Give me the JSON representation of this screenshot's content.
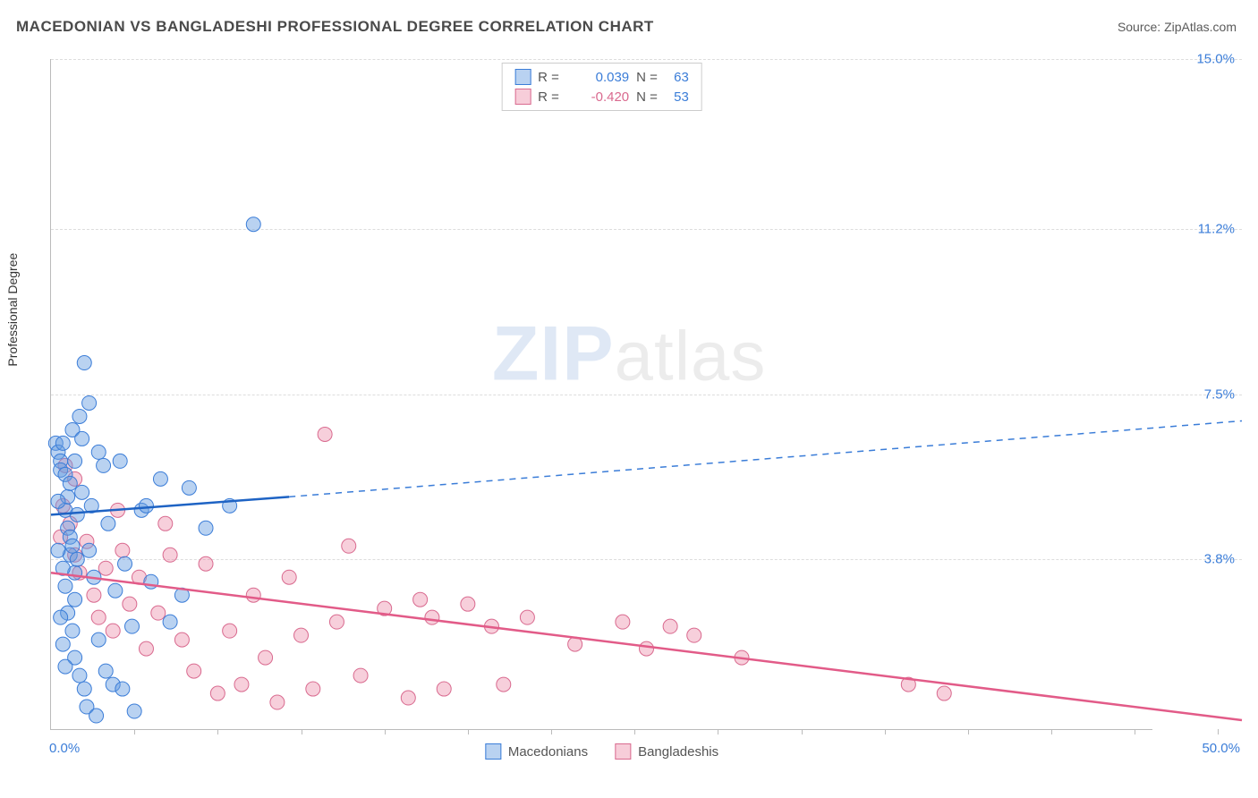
{
  "header": {
    "title": "MACEDONIAN VS BANGLADESHI PROFESSIONAL DEGREE CORRELATION CHART",
    "source": "Source: ZipAtlas.com"
  },
  "chart": {
    "type": "scatter",
    "ylabel": "Professional Degree",
    "watermark": {
      "bold": "ZIP",
      "rest": "atlas"
    },
    "xlim": [
      0,
      50
    ],
    "ylim": [
      0,
      15
    ],
    "x_axis_label_min": "0.0%",
    "x_axis_label_max": "50.0%",
    "y_ticks": [
      {
        "v": 3.8,
        "label": "3.8%"
      },
      {
        "v": 7.5,
        "label": "7.5%"
      },
      {
        "v": 11.2,
        "label": "11.2%"
      },
      {
        "v": 15.0,
        "label": "15.0%"
      }
    ],
    "x_ticks_minor": [
      3.5,
      7,
      10.5,
      14,
      17.5,
      21,
      24.5,
      28,
      31.5,
      35,
      38.5,
      42,
      45.5,
      49
    ],
    "point_radius": 8,
    "background_color": "#ffffff",
    "grid_color": "#dddddd",
    "axis_color": "#bbbbbb",
    "series": {
      "blue": {
        "name": "Macedonians",
        "color_fill": "rgba(99,155,224,0.45)",
        "color_stroke": "#3b7dd8",
        "R": "0.039",
        "N": "63",
        "trend": {
          "y0": 4.8,
          "x_solid_end": 10,
          "y_solid_end": 5.2,
          "x_end": 50,
          "y_end": 6.9
        },
        "points": [
          [
            0.2,
            6.4
          ],
          [
            0.3,
            6.2
          ],
          [
            0.4,
            6.0
          ],
          [
            0.4,
            5.8
          ],
          [
            0.5,
            6.4
          ],
          [
            0.6,
            5.7
          ],
          [
            0.6,
            4.9
          ],
          [
            0.7,
            5.2
          ],
          [
            0.7,
            4.5
          ],
          [
            0.8,
            4.3
          ],
          [
            0.8,
            3.9
          ],
          [
            0.9,
            6.7
          ],
          [
            0.9,
            4.1
          ],
          [
            1.0,
            3.5
          ],
          [
            1.0,
            2.9
          ],
          [
            1.1,
            4.8
          ],
          [
            1.2,
            7.0
          ],
          [
            1.3,
            6.5
          ],
          [
            1.4,
            8.2
          ],
          [
            1.6,
            7.3
          ],
          [
            0.3,
            4.0
          ],
          [
            0.5,
            3.6
          ],
          [
            0.6,
            3.2
          ],
          [
            0.7,
            2.6
          ],
          [
            0.9,
            2.2
          ],
          [
            1.0,
            1.6
          ],
          [
            1.2,
            1.2
          ],
          [
            1.4,
            0.9
          ],
          [
            1.6,
            4.0
          ],
          [
            1.8,
            3.4
          ],
          [
            2.0,
            6.2
          ],
          [
            2.2,
            5.9
          ],
          [
            2.4,
            4.6
          ],
          [
            2.7,
            3.1
          ],
          [
            2.9,
            6.0
          ],
          [
            3.1,
            3.7
          ],
          [
            3.4,
            2.3
          ],
          [
            3.8,
            4.9
          ],
          [
            4.2,
            3.3
          ],
          [
            4.6,
            5.6
          ],
          [
            5.0,
            2.4
          ],
          [
            5.5,
            3.0
          ],
          [
            4.0,
            5.0
          ],
          [
            2.0,
            2.0
          ],
          [
            2.3,
            1.3
          ],
          [
            2.6,
            1.0
          ],
          [
            3.0,
            0.9
          ],
          [
            3.5,
            0.4
          ],
          [
            1.5,
            0.5
          ],
          [
            1.9,
            0.3
          ],
          [
            0.4,
            2.5
          ],
          [
            0.5,
            1.9
          ],
          [
            0.6,
            1.4
          ],
          [
            0.8,
            5.5
          ],
          [
            1.1,
            3.8
          ],
          [
            1.3,
            5.3
          ],
          [
            1.7,
            5.0
          ],
          [
            1.0,
            6.0
          ],
          [
            0.3,
            5.1
          ],
          [
            8.5,
            11.3
          ],
          [
            5.8,
            5.4
          ],
          [
            6.5,
            4.5
          ],
          [
            7.5,
            5.0
          ]
        ]
      },
      "pink": {
        "name": "Bangladeshis",
        "color_fill": "rgba(235,130,160,0.38)",
        "color_stroke": "#d96a8f",
        "R": "-0.420",
        "N": "53",
        "trend": {
          "y0": 3.5,
          "x_end": 50,
          "y_end": 0.2
        },
        "points": [
          [
            0.5,
            5.0
          ],
          [
            0.8,
            4.6
          ],
          [
            1.0,
            3.9
          ],
          [
            1.2,
            3.5
          ],
          [
            1.5,
            4.2
          ],
          [
            1.8,
            3.0
          ],
          [
            2.0,
            2.5
          ],
          [
            2.3,
            3.6
          ],
          [
            2.6,
            2.2
          ],
          [
            3.0,
            4.0
          ],
          [
            3.3,
            2.8
          ],
          [
            3.7,
            3.4
          ],
          [
            4.0,
            1.8
          ],
          [
            4.5,
            2.6
          ],
          [
            5.0,
            3.9
          ],
          [
            5.5,
            2.0
          ],
          [
            6.0,
            1.3
          ],
          [
            6.5,
            3.7
          ],
          [
            7.0,
            0.8
          ],
          [
            7.5,
            2.2
          ],
          [
            8.0,
            1.0
          ],
          [
            8.5,
            3.0
          ],
          [
            9.0,
            1.6
          ],
          [
            9.5,
            0.6
          ],
          [
            10.0,
            3.4
          ],
          [
            10.5,
            2.1
          ],
          [
            11.0,
            0.9
          ],
          [
            11.5,
            6.6
          ],
          [
            12.0,
            2.4
          ],
          [
            12.5,
            4.1
          ],
          [
            13.0,
            1.2
          ],
          [
            14.0,
            2.7
          ],
          [
            15.0,
            0.7
          ],
          [
            15.5,
            2.9
          ],
          [
            16.0,
            2.5
          ],
          [
            16.5,
            0.9
          ],
          [
            17.5,
            2.8
          ],
          [
            18.5,
            2.3
          ],
          [
            19.0,
            1.0
          ],
          [
            20.0,
            2.5
          ],
          [
            22.0,
            1.9
          ],
          [
            24.0,
            2.4
          ],
          [
            25.0,
            1.8
          ],
          [
            26.0,
            2.3
          ],
          [
            27.0,
            2.1
          ],
          [
            29.0,
            1.6
          ],
          [
            36.0,
            1.0
          ],
          [
            37.5,
            0.8
          ],
          [
            1.0,
            5.6
          ],
          [
            0.6,
            5.9
          ],
          [
            0.4,
            4.3
          ],
          [
            2.8,
            4.9
          ],
          [
            4.8,
            4.6
          ]
        ]
      }
    },
    "bottom_legend": [
      {
        "swatch": "blue",
        "label": "Macedonians"
      },
      {
        "swatch": "pink",
        "label": "Bangladeshis"
      }
    ],
    "top_legend_labels": {
      "R": "R =",
      "N": "N ="
    }
  }
}
